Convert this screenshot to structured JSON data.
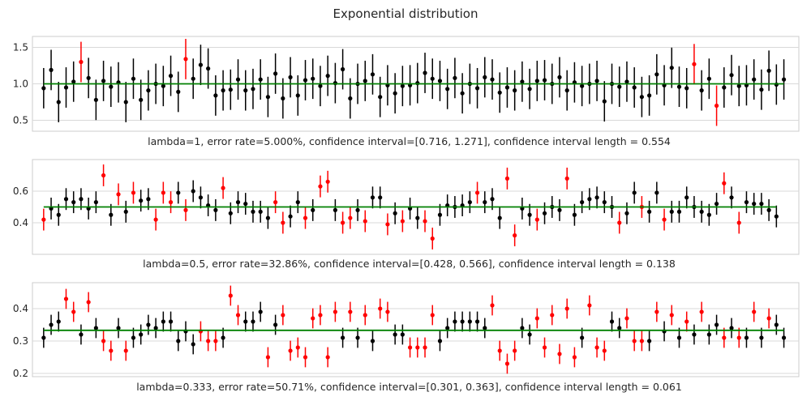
{
  "title": "Exponential distribution",
  "colors": {
    "ok": "#000000",
    "err": "#ff0000",
    "hline": "#008000",
    "grid": "#d9d9d9",
    "frame": "#cccccc"
  },
  "chart_data": [
    {
      "type": "scatter",
      "caption": "lambda=1, error rate=5.000%, confidence interval=[0.716, 1.271], confidence interval length = 0.554",
      "reference_value": 1.0,
      "yticks": [
        "0.5",
        "1.0",
        "1.5"
      ],
      "ytick_values": [
        0.5,
        1.0,
        1.5
      ],
      "ylim": [
        0.35,
        1.65
      ],
      "xlim": [
        -1.5,
        101
      ],
      "half_width": 0.277,
      "means": [
        0.94,
        1.19,
        0.75,
        0.95,
        1.03,
        1.3,
        1.08,
        0.78,
        1.04,
        0.96,
        1.02,
        0.75,
        1.07,
        0.78,
        0.91,
        1.0,
        0.97,
        1.11,
        0.89,
        1.34,
        1.07,
        1.26,
        1.21,
        0.84,
        0.91,
        0.92,
        1.06,
        0.91,
        0.93,
        1.06,
        0.82,
        1.14,
        0.8,
        1.09,
        0.84,
        1.05,
        1.07,
        0.97,
        1.11,
        1.01,
        1.2,
        0.8,
        1.0,
        1.04,
        1.13,
        0.82,
        0.98,
        0.87,
        0.97,
        0.98,
        1.01,
        1.15,
        1.07,
        1.04,
        0.93,
        1.08,
        0.87,
        1.0,
        0.94,
        1.09,
        1.06,
        0.88,
        0.95,
        0.91,
        1.03,
        0.93,
        1.04,
        1.05,
        1.0,
        1.09,
        0.91,
        1.02,
        0.97,
        1.0,
        1.04,
        0.76,
        1.0,
        0.96,
        1.03,
        0.95,
        0.82,
        0.84,
        1.13,
        0.98,
        1.22,
        0.96,
        0.94,
        1.27,
        0.91,
        1.07,
        0.7,
        0.95,
        1.12,
        0.97,
        0.98,
        1.06,
        0.92,
        1.18,
        0.99,
        1.06
      ],
      "errors": [
        5,
        19,
        87,
        90
      ]
    },
    {
      "type": "scatter",
      "caption": "lambda=0.5, error rate=32.86%, confidence interval=[0.428, 0.566], confidence interval length = 0.138",
      "reference_value": 0.5,
      "yticks": [
        "0.4",
        "0.6"
      ],
      "ytick_values": [
        0.4,
        0.6
      ],
      "ylim": [
        0.2,
        0.8
      ],
      "xlim": [
        -1.5,
        101
      ],
      "half_width": 0.069,
      "means": [
        0.42,
        0.49,
        0.45,
        0.55,
        0.53,
        0.55,
        0.49,
        0.53,
        0.7,
        0.45,
        0.58,
        0.47,
        0.59,
        0.54,
        0.55,
        0.42,
        0.59,
        0.53,
        0.59,
        0.48,
        0.6,
        0.56,
        0.51,
        0.48,
        0.62,
        0.46,
        0.53,
        0.52,
        0.47,
        0.47,
        0.43,
        0.53,
        0.4,
        0.44,
        0.53,
        0.43,
        0.48,
        0.63,
        0.66,
        0.48,
        0.4,
        0.43,
        0.48,
        0.41,
        0.56,
        0.56,
        0.39,
        0.46,
        0.41,
        0.49,
        0.43,
        0.41,
        0.3,
        0.45,
        0.51,
        0.5,
        0.51,
        0.53,
        0.59,
        0.53,
        0.55,
        0.43,
        0.68,
        0.32,
        0.49,
        0.45,
        0.42,
        0.46,
        0.5,
        0.48,
        0.68,
        0.45,
        0.53,
        0.55,
        0.56,
        0.53,
        0.5,
        0.4,
        0.46,
        0.59,
        0.5,
        0.47,
        0.59,
        0.42,
        0.47,
        0.47,
        0.56,
        0.5,
        0.47,
        0.45,
        0.52,
        0.65,
        0.56,
        0.4,
        0.53,
        0.52,
        0.52,
        0.48,
        0.44
      ],
      "errors": [
        0,
        8,
        10,
        12,
        15,
        16,
        17,
        19,
        24,
        31,
        32,
        35,
        37,
        38,
        40,
        41,
        43,
        46,
        48,
        51,
        52,
        58,
        62,
        63,
        66,
        70,
        77,
        80,
        83,
        91,
        93
      ]
    },
    {
      "type": "scatter",
      "caption": "lambda=0.333, error rate=50.71%, confidence interval=[0.301, 0.363], confidence interval length = 0.061",
      "reference_value": 0.333,
      "yticks": [
        "0.2",
        "0.3",
        "0.4"
      ],
      "ytick_values": [
        0.2,
        0.3,
        0.4
      ],
      "ylim": [
        0.19,
        0.48
      ],
      "xlim": [
        -1.5,
        101
      ],
      "half_width": 0.031,
      "means": [
        0.31,
        0.35,
        0.36,
        0.43,
        0.39,
        0.32,
        0.42,
        0.34,
        0.3,
        0.27,
        0.34,
        0.27,
        0.31,
        0.32,
        0.35,
        0.34,
        0.36,
        0.36,
        0.3,
        0.33,
        0.29,
        0.33,
        0.3,
        0.3,
        0.31,
        0.44,
        0.38,
        0.36,
        0.36,
        0.39,
        0.25,
        0.35,
        0.38,
        0.27,
        0.28,
        0.25,
        0.37,
        0.38,
        0.25,
        0.39,
        0.31,
        0.39,
        0.31,
        0.38,
        0.3,
        0.4,
        0.39,
        0.32,
        0.32,
        0.28,
        0.28,
        0.28,
        0.38,
        0.3,
        0.34,
        0.36,
        0.36,
        0.36,
        0.36,
        0.34,
        0.41,
        0.27,
        0.23,
        0.27,
        0.34,
        0.32,
        0.37,
        0.28,
        0.38,
        0.26,
        0.4,
        0.25,
        0.31,
        0.41,
        0.28,
        0.27,
        0.36,
        0.34,
        0.37,
        0.3,
        0.3,
        0.3,
        0.39,
        0.33,
        0.38,
        0.31,
        0.36,
        0.32,
        0.39,
        0.32,
        0.35,
        0.31,
        0.34,
        0.31,
        0.31,
        0.39,
        0.31,
        0.37,
        0.35,
        0.31
      ],
      "errors": [
        3,
        4,
        6,
        8,
        9,
        11,
        21,
        22,
        23,
        25,
        26,
        30,
        32,
        33,
        34,
        35,
        36,
        37,
        38,
        39,
        41,
        43,
        45,
        46,
        49,
        50,
        51,
        52,
        60,
        61,
        62,
        63,
        66,
        67,
        68,
        69,
        70,
        71,
        73,
        74,
        75,
        78,
        79,
        80,
        82,
        84,
        86,
        88,
        91,
        93,
        95,
        97
      ]
    }
  ]
}
